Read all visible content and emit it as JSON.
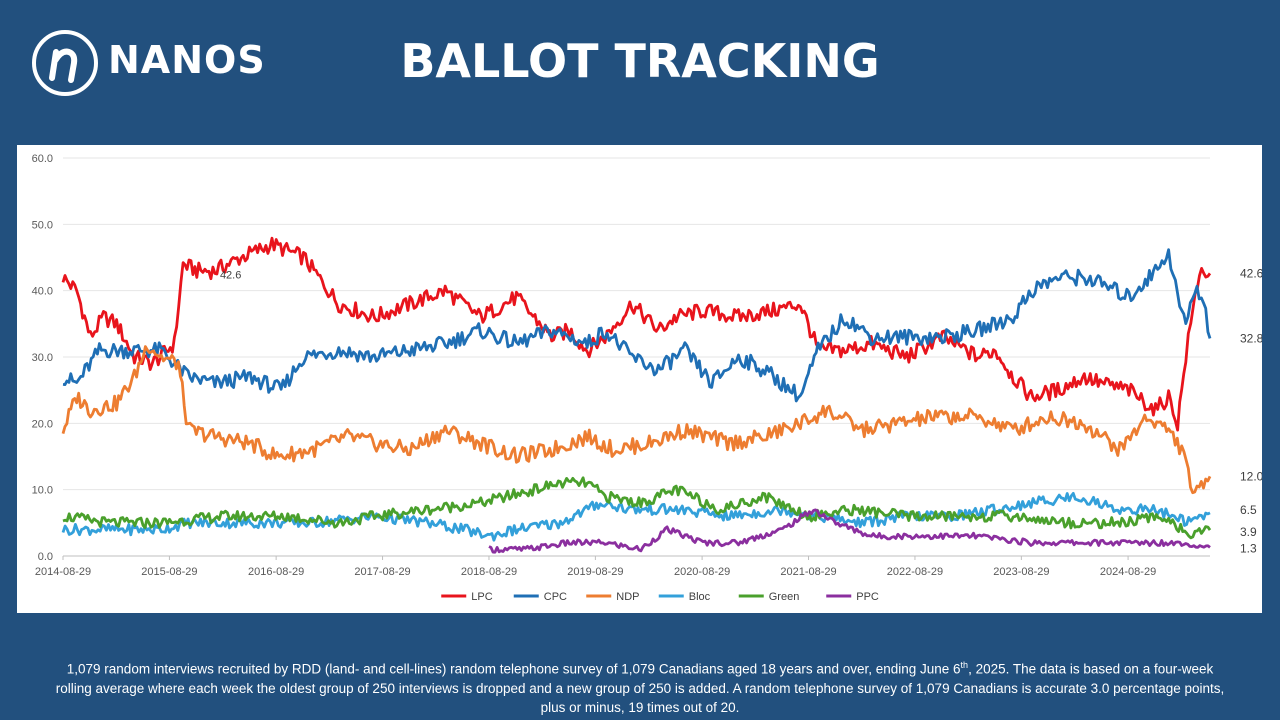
{
  "header": {
    "brand": "NANOS",
    "title": "BALLOT TRACKING"
  },
  "footer": {
    "part1": "1,079 random  interviews recruited by RDD (land- and cell-lines) random telephone survey of 1,079 Canadians aged 18 years and over, ending June 6",
    "sup": "th",
    "part2": ", 2025. The data is based on a four-week rolling average where each week the oldest group of 250 interviews is dropped and a new group of 250 is added. A random telephone survey of 1,079 Canadians is accurate 3.0 percentage points, plus or minus, 19 times out of 20."
  },
  "colors": {
    "background": "#22507e",
    "LPC": "#e8141c",
    "CPC": "#1f6fb5",
    "NDP": "#ed7d31",
    "Bloc": "#33a0da",
    "Green": "#4aa02c",
    "PPC": "#8b2f9f"
  },
  "chart_data": {
    "type": "line",
    "title": "",
    "xlabel": "",
    "ylabel": "",
    "ylim": [
      0,
      60
    ],
    "yticks": [
      "0.0",
      "10.0",
      "20.0",
      "30.0",
      "40.0",
      "50.0",
      "60.0"
    ],
    "xticks": [
      "2014-08-29",
      "2015-08-29",
      "2016-08-29",
      "2017-08-29",
      "2018-08-29",
      "2019-08-29",
      "2020-08-29",
      "2021-08-29",
      "2022-08-29",
      "2023-08-29",
      "2024-08-29"
    ],
    "x_end": "2025-06-06",
    "grid": "horizontal",
    "legend_position": "bottom",
    "annotations": [
      {
        "x": "2016-01-15",
        "y": 42.6,
        "text": "42.6"
      }
    ],
    "end_labels": [
      {
        "series": "LPC",
        "text": "42.6"
      },
      {
        "series": "CPC",
        "text": "32.8"
      },
      {
        "series": "NDP",
        "text": "12.0"
      },
      {
        "series": "Bloc",
        "text": "6.5"
      },
      {
        "series": "Green",
        "text": "3.9"
      },
      {
        "series": "PPC",
        "text": "1.3"
      }
    ],
    "series": [
      {
        "name": "LPC",
        "x": [
          "2014-08-29",
          "2014-10-15",
          "2014-12-01",
          "2015-01-15",
          "2015-03-01",
          "2015-05-01",
          "2015-07-01",
          "2015-09-15",
          "2015-10-15",
          "2015-12-01",
          "2016-02-01",
          "2016-05-01",
          "2016-08-15",
          "2016-12-01",
          "2017-04-01",
          "2017-08-01",
          "2017-12-01",
          "2018-04-01",
          "2018-08-01",
          "2018-12-01",
          "2019-04-01",
          "2019-06-01",
          "2019-08-01",
          "2019-10-01",
          "2020-01-01",
          "2020-04-01",
          "2020-06-01",
          "2020-09-01",
          "2021-01-01",
          "2021-05-01",
          "2021-08-01",
          "2021-10-01",
          "2022-01-01",
          "2022-04-01",
          "2022-08-01",
          "2022-12-01",
          "2023-04-01",
          "2023-06-01",
          "2023-08-01",
          "2023-10-01",
          "2024-01-01",
          "2024-04-01",
          "2024-06-01",
          "2024-09-01",
          "2024-12-01",
          "2025-01-15",
          "2025-02-15",
          "2025-03-15",
          "2025-04-01",
          "2025-05-01",
          "2025-06-06"
        ],
        "values": [
          42,
          40,
          33,
          36,
          35,
          30,
          29,
          32,
          44,
          43,
          43,
          45,
          47,
          45,
          38,
          36,
          38,
          40,
          36,
          39,
          33,
          34,
          31,
          33,
          38,
          34,
          36,
          37,
          36,
          37,
          38,
          31,
          31,
          32,
          30,
          33,
          30,
          31,
          27,
          24,
          25,
          27,
          26,
          25,
          22,
          24,
          20,
          30,
          35,
          43,
          42.6
        ]
      },
      {
        "name": "CPC",
        "x": [
          "2014-08-29",
          "2014-10-15",
          "2015-01-01",
          "2015-04-01",
          "2015-08-01",
          "2015-11-01",
          "2016-02-01",
          "2016-06-01",
          "2016-09-15",
          "2016-12-01",
          "2017-04-01",
          "2017-08-01",
          "2017-12-01",
          "2018-04-01",
          "2018-08-01",
          "2018-12-01",
          "2019-04-01",
          "2019-08-01",
          "2019-10-01",
          "2020-01-01",
          "2020-04-01",
          "2020-07-01",
          "2020-10-01",
          "2021-01-01",
          "2021-04-01",
          "2021-08-01",
          "2021-10-01",
          "2022-01-01",
          "2022-04-01",
          "2022-08-01",
          "2022-12-01",
          "2023-04-01",
          "2023-08-01",
          "2023-10-01",
          "2024-01-01",
          "2024-04-01",
          "2024-06-01",
          "2024-09-01",
          "2024-12-01",
          "2025-01-15",
          "2025-02-15",
          "2025-03-15",
          "2025-04-15",
          "2025-05-15",
          "2025-06-06"
        ],
        "values": [
          27,
          26,
          31,
          31,
          31,
          27,
          26,
          27,
          25,
          30,
          31,
          30,
          31,
          32,
          34,
          32,
          34,
          32,
          34,
          30,
          28,
          31,
          26,
          30,
          28,
          24,
          31,
          36,
          33,
          33,
          33,
          34,
          36,
          40,
          42,
          42,
          41,
          39,
          43,
          46,
          39,
          35,
          40,
          39,
          32.8
        ]
      },
      {
        "name": "NDP",
        "x": [
          "2014-08-29",
          "2014-10-15",
          "2014-12-01",
          "2015-03-01",
          "2015-05-01",
          "2015-06-15",
          "2015-08-01",
          "2015-09-29",
          "2015-11-01",
          "2016-02-01",
          "2016-06-01",
          "2016-09-01",
          "2017-01-01",
          "2017-05-01",
          "2017-08-01",
          "2017-12-01",
          "2018-04-01",
          "2018-08-01",
          "2018-12-01",
          "2019-04-01",
          "2019-08-01",
          "2019-11-01",
          "2020-03-01",
          "2020-07-01",
          "2020-12-01",
          "2021-04-01",
          "2021-08-01",
          "2021-11-01",
          "2022-03-01",
          "2022-07-01",
          "2022-11-01",
          "2023-04-01",
          "2023-08-01",
          "2023-12-01",
          "2024-04-01",
          "2024-08-01",
          "2024-11-01",
          "2025-01-15",
          "2025-03-01",
          "2025-04-15",
          "2025-06-06"
        ],
        "values": [
          19,
          24,
          22,
          23,
          27,
          32,
          30,
          29,
          19,
          18,
          17,
          15,
          16,
          18,
          17,
          16,
          19,
          17,
          15,
          16,
          18,
          16,
          17,
          19,
          17,
          18,
          20,
          22,
          19,
          20,
          21,
          21,
          19,
          21,
          20,
          16,
          21,
          19,
          16,
          9,
          12
        ]
      },
      {
        "name": "Bloc",
        "x": [
          "2014-08-29",
          "2015-02-01",
          "2015-08-01",
          "2015-11-01",
          "2016-06-01",
          "2017-01-01",
          "2017-08-01",
          "2018-02-01",
          "2018-06-01",
          "2018-09-01",
          "2018-12-01",
          "2019-05-01",
          "2019-09-15",
          "2020-01-01",
          "2020-06-01",
          "2020-12-01",
          "2021-06-01",
          "2021-10-01",
          "2022-03-01",
          "2022-08-01",
          "2023-01-01",
          "2023-06-01",
          "2023-10-01",
          "2024-03-01",
          "2024-08-01",
          "2024-12-01",
          "2025-04-01",
          "2025-06-06"
        ],
        "values": [
          4,
          4,
          4,
          5,
          5,
          5,
          6,
          5,
          4,
          3,
          4,
          5,
          8,
          7,
          7,
          6,
          7,
          6,
          5,
          6,
          6,
          7,
          8,
          9,
          7,
          7,
          5,
          6.5
        ]
      },
      {
        "name": "Green",
        "x": [
          "2014-08-29",
          "2015-02-01",
          "2015-08-01",
          "2016-03-01",
          "2016-10-01",
          "2017-04-01",
          "2017-08-01",
          "2018-02-01",
          "2018-08-01",
          "2019-02-01",
          "2019-05-01",
          "2019-08-01",
          "2019-10-01",
          "2020-02-01",
          "2020-06-01",
          "2020-11-01",
          "2021-04-01",
          "2021-09-01",
          "2022-02-01",
          "2022-08-01",
          "2023-02-01",
          "2023-08-01",
          "2024-02-01",
          "2024-08-01",
          "2025-01-01",
          "2025-04-01",
          "2025-06-06"
        ],
        "values": [
          6,
          5,
          5,
          6,
          6,
          5,
          6,
          7,
          8,
          10,
          11,
          11,
          9,
          8,
          10,
          7,
          9,
          6,
          7,
          6,
          6,
          6,
          5,
          5,
          6,
          3,
          3.9
        ]
      },
      {
        "name": "PPC",
        "x": [
          "2018-08-29",
          "2019-01-01",
          "2019-06-01",
          "2019-10-01",
          "2020-02-01",
          "2020-05-01",
          "2020-09-01",
          "2021-01-01",
          "2021-06-01",
          "2021-09-15",
          "2021-12-01",
          "2022-04-01",
          "2022-10-01",
          "2023-04-01",
          "2023-10-01",
          "2024-04-01",
          "2024-10-01",
          "2025-03-01",
          "2025-06-06"
        ],
        "values": [
          1,
          1,
          2,
          2,
          1,
          4,
          2,
          2,
          4,
          7,
          5,
          3,
          3,
          3,
          2,
          2,
          2,
          2,
          1.3
        ]
      }
    ]
  }
}
